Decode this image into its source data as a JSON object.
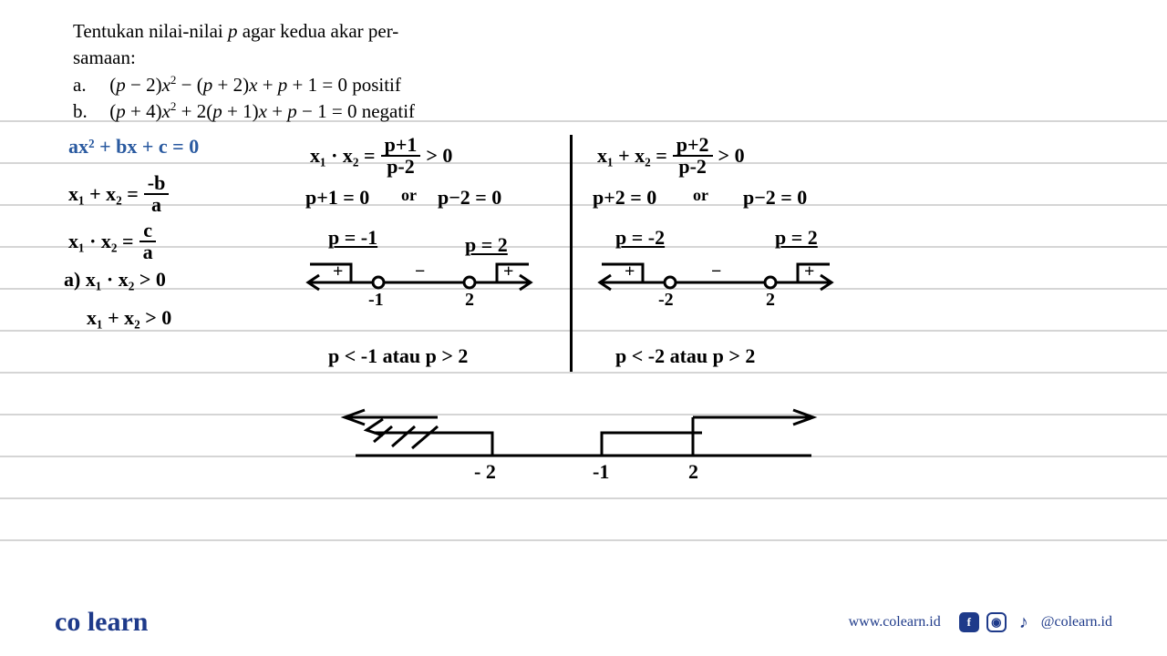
{
  "question": {
    "line1": "Tentukan  nilai-nilai  ",
    "line1_var": "p",
    "line1_cont": "  agar  kedua  akar  per-",
    "line2": "samaan:",
    "a_label": "a.",
    "a_eq": "(p − 2)x² − (p + 2)x + p + 1 = 0  positif",
    "b_label": "b.",
    "b_eq": "(p + 4)x² + 2(p + 1)x + p − 1 = 0  negatif"
  },
  "formulas": {
    "f1": "ax² + bx + c = 0",
    "f2_lhs": "x₁ + x₂ =",
    "f2_num": "-b",
    "f2_den": "a",
    "f3_lhs": "x₁ · x₂ =",
    "f3_num": "c",
    "f3_den": "a",
    "cond_a": "a) x₁ · x₂ > 0",
    "cond_b": "   x₁ + x₂ > 0"
  },
  "middle": {
    "eq1_lhs": "x₁ · x₂ =",
    "eq1_num": "p+1",
    "eq1_den": "p-2",
    "eq1_rhs": " > 0",
    "sol_a": "p+1 = 0",
    "sol_or": "or",
    "sol_b": "p−2 = 0",
    "r1": "p = -1",
    "r2": "p = 2",
    "signs": [
      "+",
      "−",
      "+"
    ],
    "ticks": [
      "-1",
      "2"
    ],
    "conclusion": "p < -1  atau  p > 2"
  },
  "right": {
    "eq1_lhs": "x₁ + x₂ =",
    "eq1_num": "p+2",
    "eq1_den": "p-2",
    "eq1_rhs": " > 0",
    "sol_a": "p+2 = 0",
    "sol_or": "or",
    "sol_b": "p−2 = 0",
    "r1": "p = -2",
    "r2": "p = 2",
    "signs": [
      "+",
      "−",
      "+"
    ],
    "ticks": [
      "-2",
      "2"
    ],
    "conclusion": "p < -2   atau   p > 2"
  },
  "bottomline": {
    "ticks": [
      "- 2",
      "-1",
      "2"
    ]
  },
  "footer": {
    "logo_co": "co",
    "logo_learn": "learn",
    "url": "www.colearn.id",
    "handle": "@colearn.id"
  },
  "style": {
    "rule_color": "#c7c7c7",
    "rule_gap": 46,
    "rule_first": 133,
    "rule_count": 11,
    "ink": "#000000",
    "blue": "#2a5aa0",
    "brand": "#1e3a8a"
  }
}
